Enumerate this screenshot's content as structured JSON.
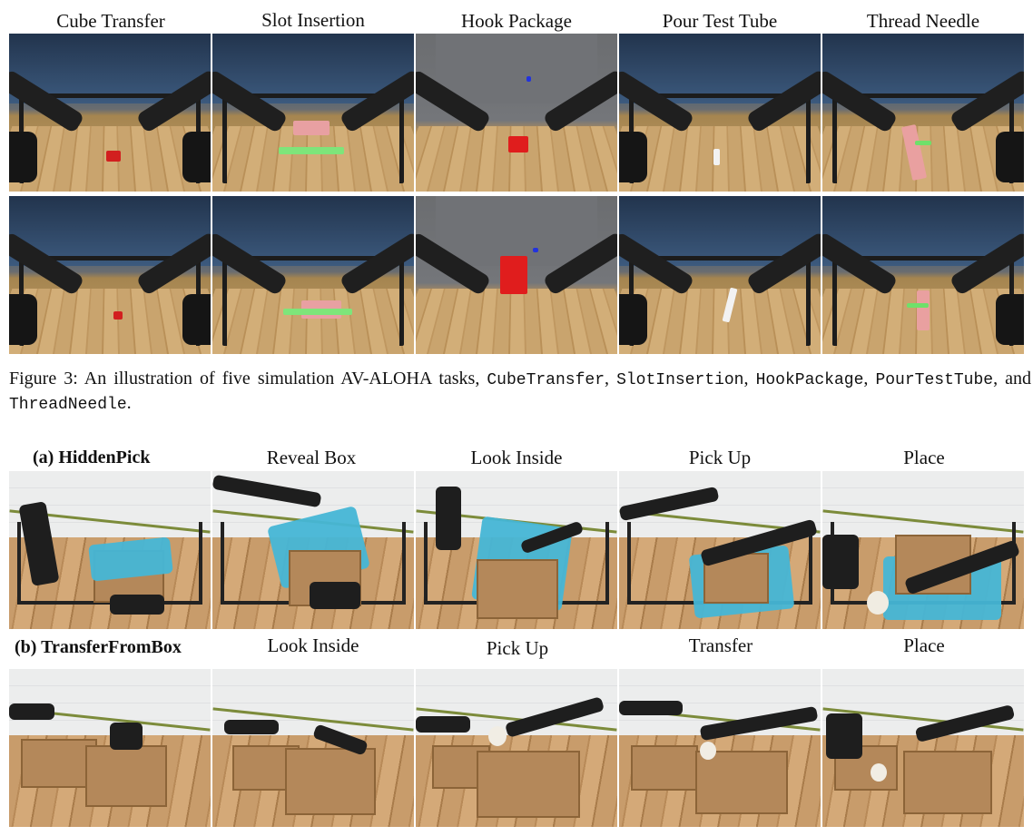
{
  "figure3": {
    "tasks": [
      "Cube Transfer",
      "Slot Insertion",
      "Hook Package",
      "Pour Test Tube",
      "Thread Needle"
    ],
    "caption": {
      "prefix": "Figure 3:  An illustration of five simulation AV-ALOHA tasks, ",
      "t1": "CubeTransfer",
      "sep1": ", ",
      "t2": "SlotInsertion",
      "sep2": ", ",
      "t3": "HookPackage",
      "sep3": ", ",
      "t4": "PourTestTube",
      "and": ", and ",
      "t5": "ThreadNeedle",
      "end": "."
    }
  },
  "figure_real": {
    "row_a": {
      "label": "(a) HiddenPick",
      "steps": [
        "Reveal Box",
        "Look Inside",
        "Pick Up",
        "Place"
      ]
    },
    "row_b": {
      "label": "(b) TransferFromBox",
      "steps": [
        "Look Inside",
        "Pick Up",
        "Transfer",
        "Place"
      ]
    }
  }
}
